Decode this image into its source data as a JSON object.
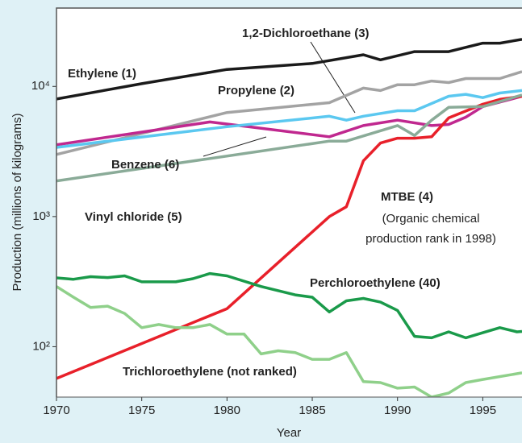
{
  "chart_data": {
    "type": "line",
    "xlabel": "Year",
    "ylabel": "Production (millions of kilograms)",
    "xlim": [
      1970,
      1997.3
    ],
    "xticks": [
      1970,
      1975,
      1980,
      1985,
      1990,
      1995
    ],
    "ylim": [
      41,
      40000
    ],
    "yticks": [
      {
        "value": 100,
        "label": "10²"
      },
      {
        "value": 1000,
        "label": "10³"
      },
      {
        "value": 10000,
        "label": "10⁴"
      }
    ],
    "log_y": true,
    "annotations": [
      "(Organic chemical",
      "production rank in 1998)"
    ],
    "series": [
      {
        "name": "Ethylene (1)",
        "color": "#1a1a1a",
        "x": [
          1970,
          1975,
          1980,
          1985,
          1988,
          1989,
          1991,
          1993,
          1995,
          1996,
          1997.3
        ],
        "values": [
          8000,
          10500,
          13500,
          15000,
          17500,
          16000,
          18500,
          18500,
          21500,
          21500,
          23000
        ]
      },
      {
        "name": "Propylene (2)",
        "color": "#a3a3a3",
        "x": [
          1970,
          1980,
          1986,
          1988,
          1989,
          1990,
          1991,
          1992,
          1993,
          1994,
          1996,
          1997.3
        ],
        "values": [
          3000,
          6300,
          7500,
          9700,
          9300,
          10300,
          10300,
          11000,
          10700,
          11500,
          11500,
          13000
        ]
      },
      {
        "name": "1,2-Dichloroethane (3)",
        "color": "#c0288f",
        "x": [
          1970,
          1979,
          1986,
          1988,
          1990,
          1992,
          1993,
          1994,
          1995,
          1997.3
        ],
        "values": [
          3560,
          5330,
          4100,
          5000,
          5500,
          5000,
          5100,
          5800,
          7000,
          8400
        ]
      },
      {
        "name": "MTBE (4)",
        "color": "#e8202a",
        "x": [
          1970,
          1980,
          1986,
          1987,
          1988,
          1989,
          1990,
          1991,
          1992,
          1993,
          1995,
          1996,
          1997.3
        ],
        "values": [
          57,
          196,
          1000,
          1190,
          2680,
          3670,
          4000,
          4000,
          4100,
          5730,
          7300,
          7950,
          8400
        ]
      },
      {
        "name": "Vinyl chloride (5)",
        "color": "#8aab98",
        "x": [
          1970,
          1986,
          1987,
          1990,
          1991,
          1992,
          1993,
          1995,
          1997.3
        ],
        "values": [
          1880,
          3800,
          3800,
          5000,
          4200,
          5500,
          6900,
          7000,
          8600
        ]
      },
      {
        "name": "Benzene (6)",
        "color": "#5bc8f0",
        "x": [
          1970,
          1980,
          1986,
          1987,
          1988,
          1990,
          1991,
          1993,
          1994,
          1995,
          1996,
          1997.3
        ],
        "values": [
          3400,
          4900,
          5900,
          5500,
          5900,
          6500,
          6500,
          8400,
          8700,
          8200,
          8900,
          9300
        ]
      },
      {
        "name": "Perchloroethylene (40)",
        "color": "#1a9a4a",
        "x": [
          1970,
          1971,
          1972,
          1973,
          1974,
          1975,
          1977,
          1978,
          1979,
          1980,
          1982,
          1984,
          1985,
          1986,
          1987,
          1988,
          1989,
          1990,
          1991,
          1992,
          1993,
          1994,
          1995,
          1996,
          1997,
          1997.3
        ],
        "values": [
          338,
          330,
          345,
          340,
          350,
          315,
          315,
          333,
          365,
          350,
          290,
          250,
          240,
          185,
          225,
          235,
          220,
          190,
          120,
          117,
          130,
          117,
          128,
          140,
          130,
          131
        ]
      },
      {
        "name": "Trichloroethylene (not ranked)",
        "color": "#8fd08a",
        "x": [
          1970,
          1971,
          1972,
          1973,
          1974,
          1975,
          1976,
          1977,
          1978,
          1979,
          1980,
          1981,
          1982,
          1983,
          1984,
          1985,
          1986,
          1987,
          1988,
          1989,
          1990,
          1991,
          1992,
          1993,
          1994,
          1995,
          1997.3
        ],
        "values": [
          290,
          240,
          200,
          205,
          180,
          140,
          148,
          140,
          140,
          148,
          125,
          125,
          88,
          93,
          90,
          80,
          80,
          90,
          54,
          53,
          48,
          49,
          41,
          44,
          53,
          56,
          63
        ]
      }
    ]
  }
}
